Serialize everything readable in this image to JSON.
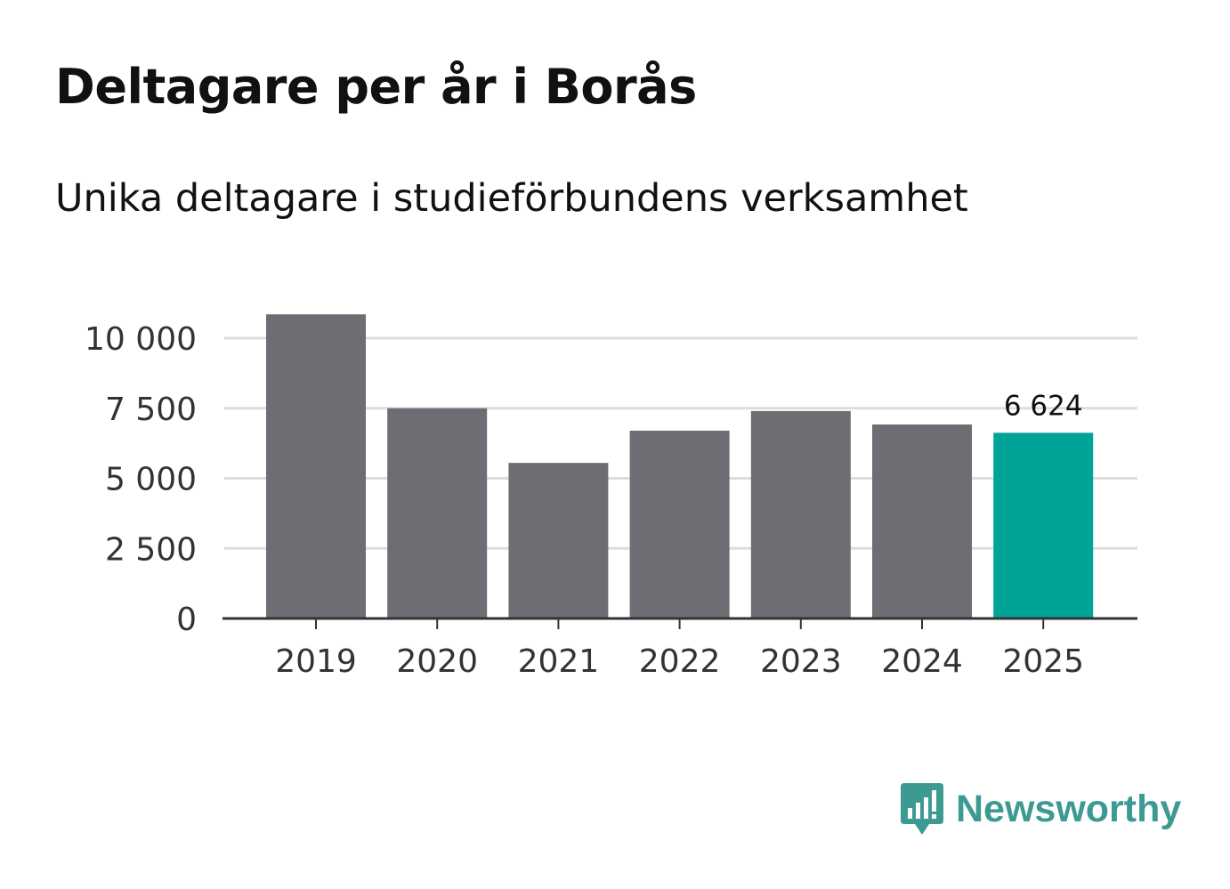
{
  "title": "Deltagare per år i Borås",
  "subtitle": "Unika deltagare i studieförbundens verksamhet",
  "brand": {
    "name": "Newsworthy",
    "color": "#3d9a93",
    "icon": "newsworthy-logo-icon"
  },
  "colors": {
    "bar": "#6e6d73",
    "highlight": "#00a398",
    "grid": "#dddddd",
    "axis": "#333333",
    "text": "#333333"
  },
  "chart_data": {
    "type": "bar",
    "title": "Deltagare per år i Borås",
    "subtitle": "Unika deltagare i studieförbundens verksamhet",
    "categories": [
      "2019",
      "2020",
      "2021",
      "2022",
      "2023",
      "2024",
      "2025"
    ],
    "values": [
      10850,
      7500,
      5550,
      6700,
      7400,
      6920,
      6624
    ],
    "highlight_index": 6,
    "data_labels": [
      {
        "index": 6,
        "text": "6 624"
      }
    ],
    "yticks": [
      0,
      2500,
      5000,
      7500,
      10000
    ],
    "ytick_labels": [
      "0",
      "2 500",
      "5 000",
      "7 500",
      "10 000"
    ],
    "ylim": [
      0,
      11300
    ],
    "xlabel": "",
    "ylabel": "",
    "grid": true,
    "legend": "none"
  }
}
